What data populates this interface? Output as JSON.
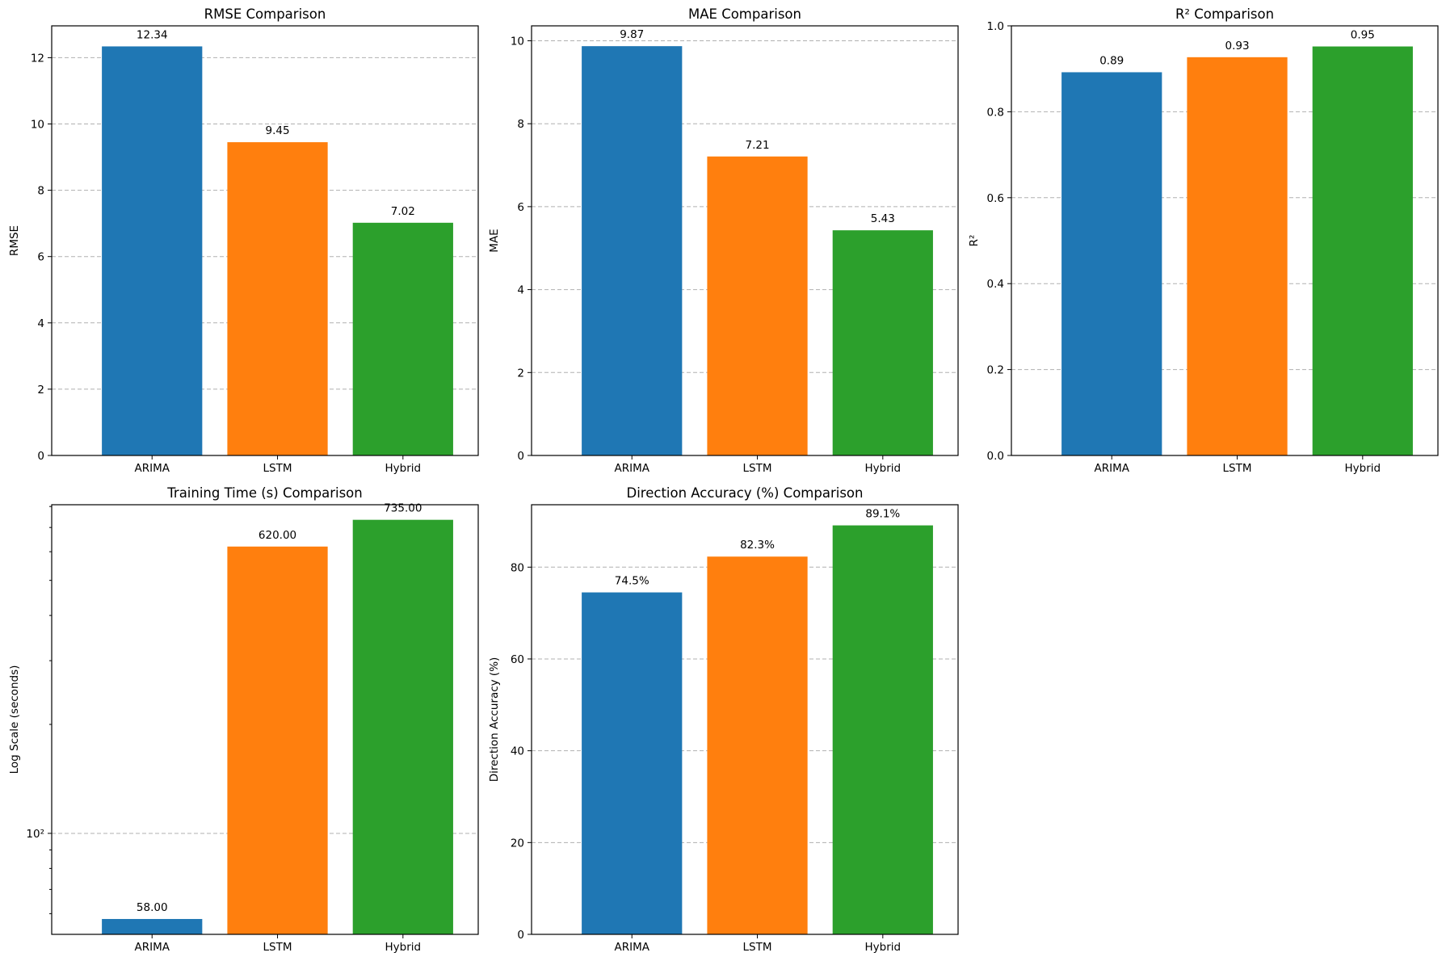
{
  "colors": {
    "ARIMA": "#1f77b4",
    "LSTM": "#ff7f0e",
    "Hybrid": "#2ca02c"
  },
  "chart_data": [
    {
      "type": "bar",
      "title": "RMSE Comparison",
      "xlabel": "",
      "ylabel": "RMSE",
      "categories": [
        "ARIMA",
        "LSTM",
        "Hybrid"
      ],
      "values": [
        12.34,
        9.45,
        7.02
      ],
      "value_labels": [
        "12.34",
        "9.45",
        "7.02"
      ],
      "ylim": [
        0,
        12.96
      ],
      "yticks": [
        0,
        2,
        4,
        6,
        8,
        10,
        12
      ],
      "ytick_labels": [
        "0",
        "2",
        "4",
        "6",
        "8",
        "10",
        "12"
      ],
      "scale": "linear",
      "grid": "y"
    },
    {
      "type": "bar",
      "title": "MAE Comparison",
      "xlabel": "",
      "ylabel": "MAE",
      "categories": [
        "ARIMA",
        "LSTM",
        "Hybrid"
      ],
      "values": [
        9.87,
        7.21,
        5.43
      ],
      "value_labels": [
        "9.87",
        "7.21",
        "5.43"
      ],
      "ylim": [
        0,
        10.36
      ],
      "yticks": [
        0,
        2,
        4,
        6,
        8,
        10
      ],
      "ytick_labels": [
        "0",
        "2",
        "4",
        "6",
        "8",
        "10"
      ],
      "scale": "linear",
      "grid": "y"
    },
    {
      "type": "bar",
      "title": "R² Comparison",
      "xlabel": "",
      "ylabel": "R²",
      "categories": [
        "ARIMA",
        "LSTM",
        "Hybrid"
      ],
      "values": [
        0.892,
        0.927,
        0.952
      ],
      "value_labels": [
        "0.89",
        "0.93",
        "0.95"
      ],
      "ylim": [
        0,
        1.0
      ],
      "yticks": [
        0.0,
        0.2,
        0.4,
        0.6,
        0.8,
        1.0
      ],
      "ytick_labels": [
        "0.0",
        "0.2",
        "0.4",
        "0.6",
        "0.8",
        "1.0"
      ],
      "scale": "linear",
      "grid": "y"
    },
    {
      "type": "bar",
      "title": "Training Time (s) Comparison",
      "xlabel": "",
      "ylabel": "Log Scale (seconds)",
      "categories": [
        "ARIMA",
        "LSTM",
        "Hybrid"
      ],
      "values": [
        58,
        620,
        735
      ],
      "value_labels": [
        "58.00",
        "620.00",
        "735.00"
      ],
      "ylim": [
        52.6,
        809
      ],
      "yticks": [
        100
      ],
      "ytick_labels": [
        "10²"
      ],
      "scale": "log",
      "grid": "y"
    },
    {
      "type": "bar",
      "title": "Direction Accuracy (%) Comparison",
      "xlabel": "",
      "ylabel": "Direction Accuracy (%)",
      "categories": [
        "ARIMA",
        "LSTM",
        "Hybrid"
      ],
      "values": [
        74.5,
        82.3,
        89.1
      ],
      "value_labels": [
        "74.5%",
        "82.3%",
        "89.1%"
      ],
      "ylim": [
        0,
        93.6
      ],
      "yticks": [
        0,
        20,
        40,
        60,
        80
      ],
      "ytick_labels": [
        "0",
        "20",
        "40",
        "60",
        "80"
      ],
      "scale": "linear",
      "grid": "y"
    }
  ]
}
